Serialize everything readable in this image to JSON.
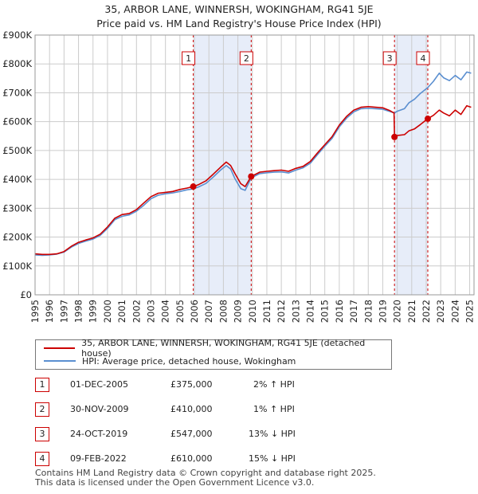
{
  "header": {
    "title": "35, ARBOR LANE, WINNERSH, WOKINGHAM, RG41 5JE",
    "subtitle": "Price paid vs. HM Land Registry's House Price Index (HPI)"
  },
  "colors": {
    "property": "#cc0000",
    "hpi": "#5b8fd0",
    "shade": "#dde6f7",
    "marker_border": "#cc0000",
    "grid": "#cccccc"
  },
  "chart_data": {
    "type": "line",
    "title": "Price paid vs. HM Land Registry's House Price Index (HPI)",
    "xlabel": "",
    "ylabel": "",
    "xlim": [
      1995,
      2025.3
    ],
    "ylim": [
      0,
      900000
    ],
    "x_ticks": [
      "1995",
      "1996",
      "1997",
      "1998",
      "1999",
      "2000",
      "2001",
      "2002",
      "2003",
      "2004",
      "2005",
      "2006",
      "2007",
      "2008",
      "2009",
      "2010",
      "2011",
      "2012",
      "2013",
      "2014",
      "2015",
      "2016",
      "2017",
      "2018",
      "2019",
      "2020",
      "2021",
      "2022",
      "2023",
      "2024",
      "2025"
    ],
    "y_ticks": [
      {
        "value": 0,
        "label": "£0"
      },
      {
        "value": 100000,
        "label": "£100K"
      },
      {
        "value": 200000,
        "label": "£200K"
      },
      {
        "value": 300000,
        "label": "£300K"
      },
      {
        "value": 400000,
        "label": "£400K"
      },
      {
        "value": 500000,
        "label": "£500K"
      },
      {
        "value": 600000,
        "label": "£600K"
      },
      {
        "value": 700000,
        "label": "£700K"
      },
      {
        "value": 800000,
        "label": "£800K"
      },
      {
        "value": 900000,
        "label": "£900K"
      }
    ],
    "grid": true,
    "shaded_periods": [
      [
        2005.92,
        2009.92
      ],
      [
        2019.81,
        2022.11
      ]
    ],
    "series": [
      {
        "name": "35, ARBOR LANE, WINNERSH, WOKINGHAM, RG41 5JE (detached house)",
        "color": "#cc0000",
        "points": [
          [
            1995.0,
            142000
          ],
          [
            1995.5,
            140000
          ],
          [
            1996.0,
            140000
          ],
          [
            1996.5,
            142000
          ],
          [
            1997.0,
            150000
          ],
          [
            1997.5,
            168000
          ],
          [
            1998.0,
            182000
          ],
          [
            1998.5,
            190000
          ],
          [
            1999.0,
            197000
          ],
          [
            1999.5,
            210000
          ],
          [
            2000.0,
            235000
          ],
          [
            2000.5,
            265000
          ],
          [
            2001.0,
            278000
          ],
          [
            2001.5,
            282000
          ],
          [
            2002.0,
            295000
          ],
          [
            2002.5,
            318000
          ],
          [
            2003.0,
            340000
          ],
          [
            2003.5,
            352000
          ],
          [
            2004.0,
            355000
          ],
          [
            2004.5,
            358000
          ],
          [
            2005.0,
            365000
          ],
          [
            2005.5,
            370000
          ],
          [
            2005.92,
            375000
          ],
          [
            2006.3,
            382000
          ],
          [
            2006.8,
            395000
          ],
          [
            2007.3,
            418000
          ],
          [
            2007.8,
            442000
          ],
          [
            2008.2,
            460000
          ],
          [
            2008.5,
            448000
          ],
          [
            2008.8,
            420000
          ],
          [
            2009.2,
            385000
          ],
          [
            2009.5,
            375000
          ],
          [
            2009.92,
            410000
          ],
          [
            2010.5,
            425000
          ],
          [
            2011.0,
            428000
          ],
          [
            2011.5,
            430000
          ],
          [
            2012.0,
            432000
          ],
          [
            2012.5,
            428000
          ],
          [
            2013.0,
            438000
          ],
          [
            2013.5,
            445000
          ],
          [
            2014.0,
            462000
          ],
          [
            2014.5,
            492000
          ],
          [
            2015.0,
            520000
          ],
          [
            2015.5,
            548000
          ],
          [
            2016.0,
            588000
          ],
          [
            2016.5,
            618000
          ],
          [
            2017.0,
            640000
          ],
          [
            2017.5,
            650000
          ],
          [
            2018.0,
            652000
          ],
          [
            2018.5,
            650000
          ],
          [
            2019.0,
            648000
          ],
          [
            2019.5,
            638000
          ],
          [
            2019.78,
            630000
          ],
          [
            2019.81,
            547000
          ],
          [
            2020.0,
            552000
          ],
          [
            2020.5,
            555000
          ],
          [
            2020.8,
            568000
          ],
          [
            2021.2,
            575000
          ],
          [
            2021.6,
            590000
          ],
          [
            2022.11,
            610000
          ],
          [
            2022.5,
            622000
          ],
          [
            2022.9,
            640000
          ],
          [
            2023.2,
            630000
          ],
          [
            2023.6,
            620000
          ],
          [
            2024.0,
            640000
          ],
          [
            2024.4,
            625000
          ],
          [
            2024.8,
            655000
          ],
          [
            2025.1,
            650000
          ]
        ]
      },
      {
        "name": "HPI: Average price, detached house, Wokingham",
        "color": "#5b8fd0",
        "points": [
          [
            1995.0,
            138000
          ],
          [
            1995.5,
            137000
          ],
          [
            1996.0,
            138000
          ],
          [
            1996.5,
            141000
          ],
          [
            1997.0,
            148000
          ],
          [
            1997.5,
            165000
          ],
          [
            1998.0,
            178000
          ],
          [
            1998.5,
            186000
          ],
          [
            1999.0,
            193000
          ],
          [
            1999.5,
            206000
          ],
          [
            2000.0,
            230000
          ],
          [
            2000.5,
            260000
          ],
          [
            2001.0,
            272000
          ],
          [
            2001.5,
            277000
          ],
          [
            2002.0,
            290000
          ],
          [
            2002.5,
            310000
          ],
          [
            2003.0,
            333000
          ],
          [
            2003.5,
            345000
          ],
          [
            2004.0,
            350000
          ],
          [
            2004.5,
            353000
          ],
          [
            2005.0,
            358000
          ],
          [
            2005.5,
            364000
          ],
          [
            2005.92,
            367000
          ],
          [
            2006.3,
            374000
          ],
          [
            2006.8,
            386000
          ],
          [
            2007.3,
            408000
          ],
          [
            2007.8,
            432000
          ],
          [
            2008.2,
            448000
          ],
          [
            2008.5,
            436000
          ],
          [
            2008.8,
            402000
          ],
          [
            2009.2,
            368000
          ],
          [
            2009.5,
            362000
          ],
          [
            2009.92,
            405000
          ],
          [
            2010.5,
            420000
          ],
          [
            2011.0,
            423000
          ],
          [
            2011.5,
            425000
          ],
          [
            2012.0,
            426000
          ],
          [
            2012.5,
            422000
          ],
          [
            2013.0,
            432000
          ],
          [
            2013.5,
            440000
          ],
          [
            2014.0,
            456000
          ],
          [
            2014.5,
            486000
          ],
          [
            2015.0,
            515000
          ],
          [
            2015.5,
            542000
          ],
          [
            2016.0,
            582000
          ],
          [
            2016.5,
            612000
          ],
          [
            2017.0,
            634000
          ],
          [
            2017.5,
            645000
          ],
          [
            2018.0,
            646000
          ],
          [
            2018.5,
            645000
          ],
          [
            2019.0,
            643000
          ],
          [
            2019.5,
            635000
          ],
          [
            2019.81,
            630000
          ],
          [
            2020.0,
            636000
          ],
          [
            2020.5,
            645000
          ],
          [
            2020.8,
            665000
          ],
          [
            2021.2,
            678000
          ],
          [
            2021.6,
            698000
          ],
          [
            2022.11,
            718000
          ],
          [
            2022.5,
            740000
          ],
          [
            2022.9,
            768000
          ],
          [
            2023.2,
            752000
          ],
          [
            2023.6,
            742000
          ],
          [
            2024.0,
            760000
          ],
          [
            2024.4,
            745000
          ],
          [
            2024.8,
            772000
          ],
          [
            2025.1,
            768000
          ]
        ]
      }
    ],
    "sales": [
      {
        "label": "1",
        "x": 2005.92,
        "price": 375000
      },
      {
        "label": "2",
        "x": 2009.92,
        "price": 410000
      },
      {
        "label": "3",
        "x": 2019.81,
        "price": 547000
      },
      {
        "label": "4",
        "x": 2022.11,
        "price": 610000
      }
    ]
  },
  "legend": {
    "property_label": "35, ARBOR LANE, WINNERSH, WOKINGHAM, RG41 5JE (detached house)",
    "hpi_label": "HPI: Average price, detached house, Wokingham"
  },
  "sales_table": [
    {
      "num": "1",
      "date": "01-DEC-2005",
      "price": "£375,000",
      "delta": "2% ↑ HPI"
    },
    {
      "num": "2",
      "date": "30-NOV-2009",
      "price": "£410,000",
      "delta": "1% ↑ HPI"
    },
    {
      "num": "3",
      "date": "24-OCT-2019",
      "price": "£547,000",
      "delta": "13% ↓ HPI"
    },
    {
      "num": "4",
      "date": "09-FEB-2022",
      "price": "£610,000",
      "delta": "15% ↓ HPI"
    }
  ],
  "footer": {
    "line1": "Contains HM Land Registry data © Crown copyright and database right 2025.",
    "line2": "This data is licensed under the Open Government Licence v3.0."
  }
}
